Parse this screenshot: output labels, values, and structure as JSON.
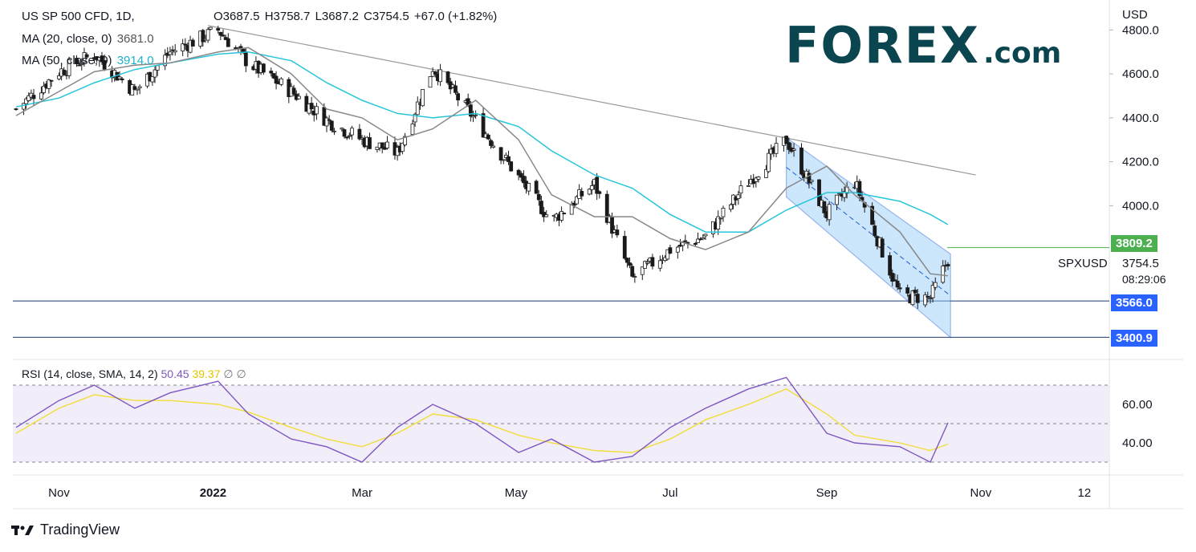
{
  "header": {
    "symbol": "US SP 500 CFD, 1D,",
    "open": "O3687.5",
    "high": "H3758.7",
    "low": "L3687.2",
    "close": "C3754.5",
    "change": "+67.0 (+1.82%)",
    "ma20_label": "MA (20, close, 0)",
    "ma20_value": "3681.0",
    "ma50_label": "MA (50, close, 0)",
    "ma50_value": "3914.0"
  },
  "rsi_header": {
    "label": "RSI (14, close, SMA, 14, 2)",
    "rsi_value": "50.45",
    "sma_value": "39.37",
    "extra": "∅  ∅"
  },
  "logo": {
    "text": "FOREX",
    "suffix": ".com"
  },
  "branding": {
    "tradingview": "TradingView"
  },
  "price_axis": {
    "currency": "USD",
    "ticks": [
      "4800.0",
      "4600.0",
      "4400.0",
      "4200.0",
      "4000.0"
    ]
  },
  "rsi_axis": {
    "ticks": [
      "60.00",
      "40.00"
    ]
  },
  "time_axis": {
    "ticks": [
      "Nov",
      "2022",
      "Mar",
      "May",
      "Jul",
      "Sep",
      "Nov",
      "12"
    ]
  },
  "levels": {
    "resistance": "3809.2",
    "support1": "3566.0",
    "support2": "3400.9"
  },
  "last_price": {
    "symbol": "SPXUSD",
    "price": "3754.5",
    "countdown": "08:29:06"
  },
  "colors": {
    "up": "#1a1a1a",
    "candle_up_fill": "#ffffff",
    "down": "#1a1a1a",
    "ma20": "#888888",
    "ma50": "#26c6da",
    "rsi": "#7e57c2",
    "rsi_sma": "#f1dd3a",
    "channel": "#1e5bd8",
    "support": "#1a3d6e",
    "resistance": "#4caf50",
    "trendline": "#999999"
  },
  "chart_data": {
    "type": "line",
    "title": "US SP 500 CFD, 1D",
    "ylabel": "USD",
    "ylim": [
      3300,
      4900
    ],
    "x": [
      "2021-10-15",
      "2021-11-01",
      "2021-11-15",
      "2021-12-01",
      "2021-12-15",
      "2022-01-03",
      "2022-01-15",
      "2022-02-01",
      "2022-02-15",
      "2022-03-01",
      "2022-03-15",
      "2022-03-29",
      "2022-04-15",
      "2022-05-02",
      "2022-05-15",
      "2022-06-01",
      "2022-06-16",
      "2022-07-01",
      "2022-07-15",
      "2022-08-01",
      "2022-08-16",
      "2022-09-01",
      "2022-09-12",
      "2022-09-30",
      "2022-10-12",
      "2022-10-19"
    ],
    "series": [
      {
        "name": "Close",
        "values": [
          4440,
          4610,
          4690,
          4520,
          4700,
          4800,
          4650,
          4520,
          4390,
          4300,
          4240,
          4630,
          4390,
          4130,
          3930,
          4100,
          3670,
          3800,
          3860,
          4110,
          4300,
          3960,
          4110,
          3590,
          3580,
          3754.5
        ]
      },
      {
        "name": "MA 20",
        "values": [
          4410,
          4520,
          4610,
          4640,
          4650,
          4700,
          4720,
          4600,
          4440,
          4400,
          4300,
          4350,
          4480,
          4300,
          4050,
          3950,
          3950,
          3850,
          3800,
          3880,
          4080,
          4180,
          4050,
          3880,
          3690,
          3681
        ]
      },
      {
        "name": "MA 50",
        "values": [
          4450,
          4490,
          4560,
          4620,
          4650,
          4690,
          4700,
          4660,
          4560,
          4480,
          4420,
          4400,
          4420,
          4360,
          4250,
          4140,
          4080,
          3960,
          3880,
          3880,
          3980,
          4060,
          4060,
          4020,
          3960,
          3914
        ]
      }
    ],
    "rsi": {
      "label": "RSI (14, close, SMA, 14, 2)",
      "ylim": [
        25,
        80
      ],
      "values": [
        48,
        62,
        70,
        58,
        66,
        72,
        55,
        42,
        38,
        30,
        48,
        60,
        50,
        35,
        42,
        30,
        33,
        48,
        58,
        68,
        74,
        45,
        40,
        38,
        30,
        50.45
      ],
      "sma": [
        45,
        58,
        65,
        62,
        62,
        60,
        56,
        48,
        42,
        38,
        45,
        55,
        52,
        44,
        40,
        36,
        35,
        42,
        52,
        60,
        68,
        55,
        44,
        40,
        36,
        39.37
      ]
    },
    "levels": [
      3809.2,
      3566.0,
      3400.9
    ]
  }
}
